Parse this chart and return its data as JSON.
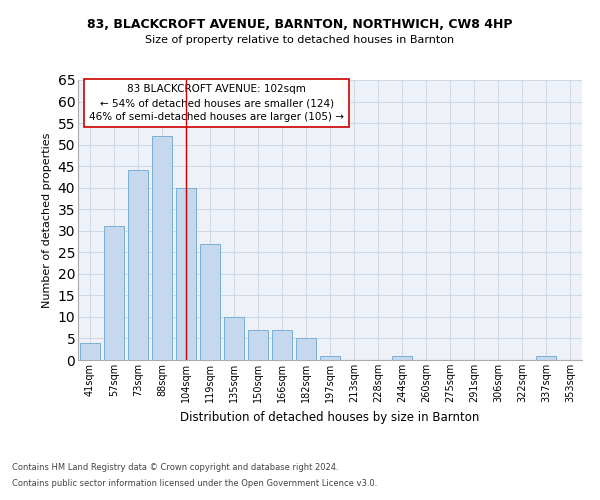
{
  "title1": "83, BLACKCROFT AVENUE, BARNTON, NORTHWICH, CW8 4HP",
  "title2": "Size of property relative to detached houses in Barnton",
  "xlabel": "Distribution of detached houses by size in Barnton",
  "ylabel": "Number of detached properties",
  "categories": [
    "41sqm",
    "57sqm",
    "73sqm",
    "88sqm",
    "104sqm",
    "119sqm",
    "135sqm",
    "150sqm",
    "166sqm",
    "182sqm",
    "197sqm",
    "213sqm",
    "228sqm",
    "244sqm",
    "260sqm",
    "275sqm",
    "291sqm",
    "306sqm",
    "322sqm",
    "337sqm",
    "353sqm"
  ],
  "values": [
    4,
    31,
    44,
    52,
    40,
    27,
    10,
    7,
    7,
    5,
    1,
    0,
    0,
    1,
    0,
    0,
    0,
    0,
    0,
    1,
    0
  ],
  "bar_color": "#c5d8ed",
  "bar_edgecolor": "#7aafd4",
  "vline_x": 4,
  "vline_color": "#cc0000",
  "annotation_text": "83 BLACKCROFT AVENUE: 102sqm\n← 54% of detached houses are smaller (124)\n46% of semi-detached houses are larger (105) →",
  "annotation_box_color": "#ffffff",
  "annotation_box_edgecolor": "#cc0000",
  "ylim": [
    0,
    65
  ],
  "yticks": [
    0,
    5,
    10,
    15,
    20,
    25,
    30,
    35,
    40,
    45,
    50,
    55,
    60,
    65
  ],
  "grid_color": "#d0d8e8",
  "background_color": "#eef2f8",
  "footnote1": "Contains HM Land Registry data © Crown copyright and database right 2024.",
  "footnote2": "Contains public sector information licensed under the Open Government Licence v3.0."
}
